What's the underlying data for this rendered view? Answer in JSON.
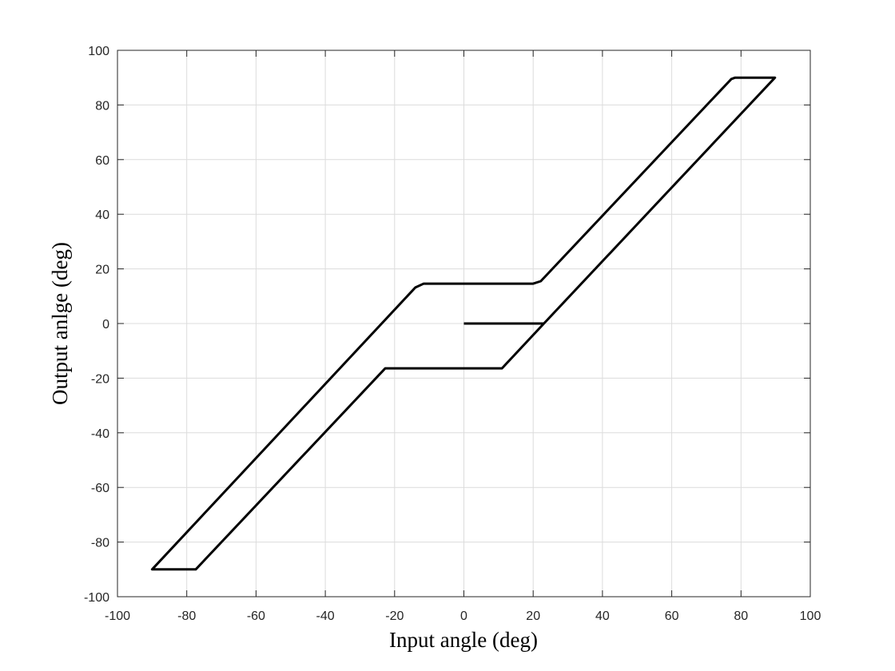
{
  "chart_data": {
    "type": "line",
    "xlabel": "Input angle (deg)",
    "ylabel": "Output anlge (deg)",
    "xlim": [
      -100,
      100
    ],
    "ylim": [
      -100,
      100
    ],
    "xticks": [
      -100,
      -80,
      -60,
      -40,
      -20,
      0,
      20,
      40,
      60,
      80,
      100
    ],
    "yticks": [
      -100,
      -80,
      -60,
      -40,
      -20,
      0,
      20,
      40,
      60,
      80,
      100
    ],
    "grid": true,
    "x": [
      0,
      23.1,
      89.8,
      78.3,
      77.2,
      22.2,
      20,
      -11.6,
      -14,
      -90,
      -77.4,
      -22.7,
      11,
      23.1
    ],
    "series": [
      {
        "color": "#000000",
        "values": [
          0,
          0,
          90,
          90,
          89.5,
          15.5,
          14.6,
          14.6,
          13.2,
          -90,
          -90,
          -16.4,
          -16.4,
          0
        ]
      }
    ]
  }
}
